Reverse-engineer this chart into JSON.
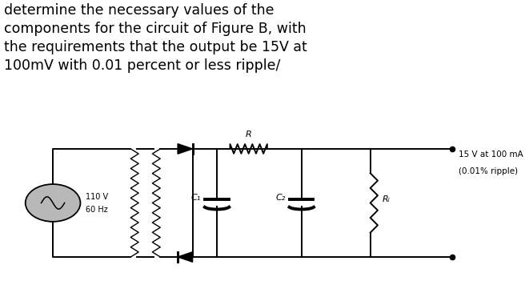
{
  "title_text": "determine the necessary values of the\ncomponents for the circuit of Figure B, with\nthe requirements that the output be 15V at\n100mV with 0.01 percent or less ripple/",
  "title_fontsize": 12.5,
  "title_color": "#000000",
  "bg_color_top": "#ffffff",
  "bg_color_circuit": "#b8b8b8",
  "circuit_label_15V": "15 V at 100 mA",
  "circuit_label_ripple": "(0.01% ripple)",
  "source_label1": "110 V",
  "source_label2": "60 Hz",
  "label_R": "R",
  "label_C1": "C₁",
  "label_C2": "C₂",
  "label_RL": "Rₗ",
  "title_ratio": 0.385,
  "circuit_ratio": 0.615
}
